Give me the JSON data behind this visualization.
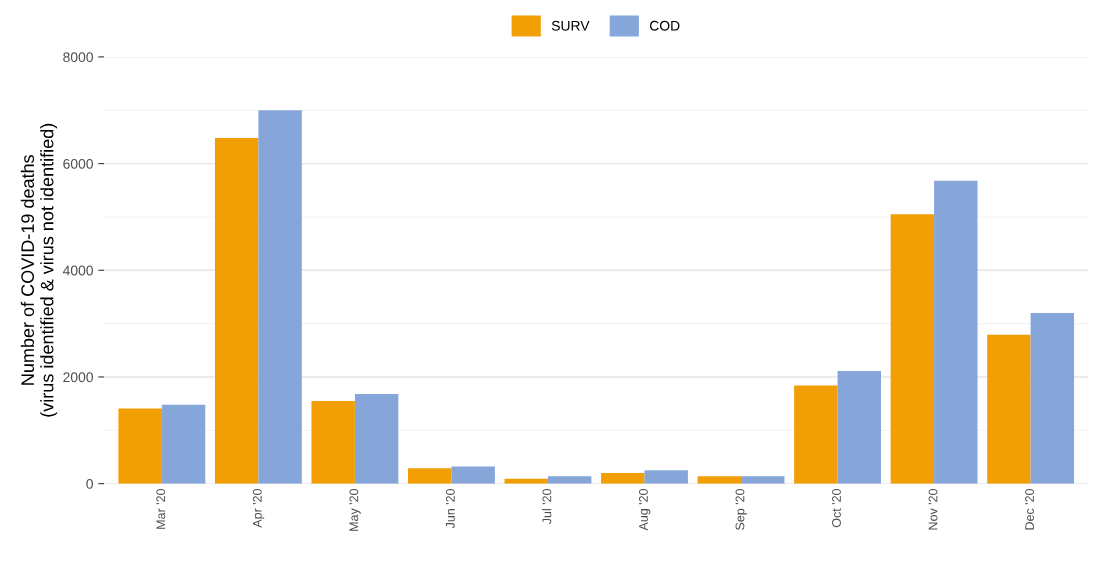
{
  "chart_data": {
    "type": "bar",
    "ylabel": "Number of COVID-19 deaths\n(virus identified & virus not identified)",
    "categories": [
      "Mar '20",
      "Apr '20",
      "May '20",
      "Jun '20",
      "Jul '20",
      "Aug '20",
      "Sep '20",
      "Oct '20",
      "Nov '20",
      "Dec '20"
    ],
    "series": [
      {
        "name": "SURV",
        "color": "#f29f05",
        "values": [
          1410,
          6480,
          1550,
          290,
          90,
          200,
          140,
          1840,
          5050,
          2790
        ]
      },
      {
        "name": "COD",
        "color": "#86a6da",
        "values": [
          1480,
          7000,
          1680,
          320,
          140,
          250,
          140,
          2110,
          5680,
          3200
        ]
      }
    ],
    "ylim": [
      0,
      8000
    ],
    "yticks": [
      0,
      2000,
      4000,
      6000,
      8000
    ],
    "grid": "y",
    "legend": "top"
  }
}
